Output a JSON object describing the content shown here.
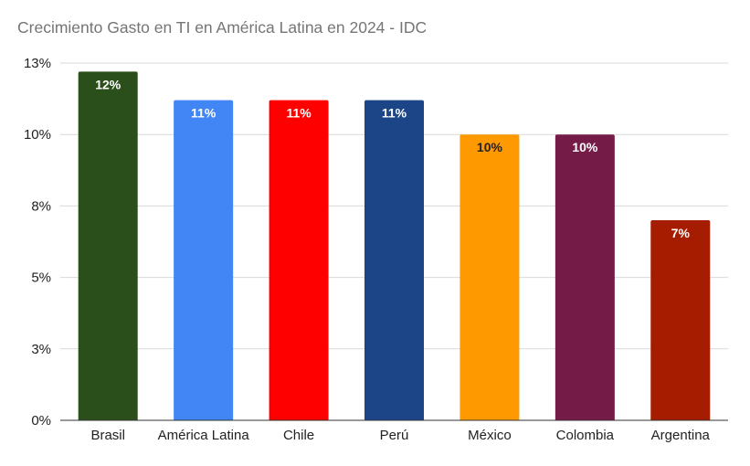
{
  "chart_data": {
    "type": "bar",
    "title": "Crecimiento Gasto en TI en América Latina en 2024 - IDC",
    "xlabel": "",
    "ylabel": "",
    "categories": [
      "Brasil",
      "América Latina",
      "Chile",
      "Perú",
      "México",
      "Colombia",
      "Argentina"
    ],
    "values": [
      12.2,
      11.2,
      11.2,
      11.2,
      10.0,
      10.0,
      7.0
    ],
    "data_labels": [
      "12%",
      "11%",
      "11%",
      "11%",
      "10%",
      "10%",
      "7%"
    ],
    "bar_colors": [
      "#2b4f1a",
      "#4285f4",
      "#ff0000",
      "#1c4587",
      "#ff9900",
      "#741b47",
      "#a61c00"
    ],
    "label_colors": [
      "#ffffff",
      "#ffffff",
      "#ffffff",
      "#ffffff",
      "#222222",
      "#ffffff",
      "#ffffff"
    ],
    "ylim": [
      0,
      12.5
    ],
    "y_ticks": [
      0,
      2.5,
      5,
      7.5,
      10,
      12.5
    ],
    "y_tick_labels": [
      "0%",
      "3%",
      "5%",
      "8%",
      "10%",
      "13%"
    ],
    "grid": true,
    "legend": "none"
  }
}
